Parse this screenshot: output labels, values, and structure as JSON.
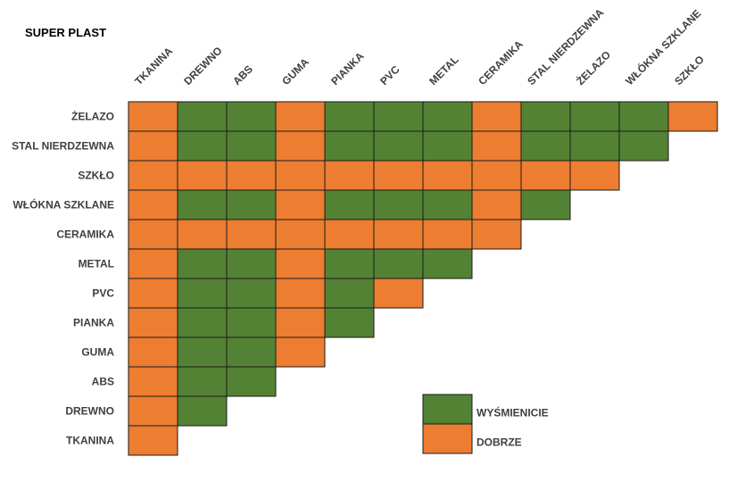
{
  "chart_data": {
    "type": "heatmap",
    "title": "SUPER PLAST",
    "columns": [
      "TKANINA",
      "DREWNO",
      "ABS",
      "GUMA",
      "PIANKA",
      "PVC",
      "METAL",
      "CERAMIKA",
      "STAL NIERDZEWNA",
      "ŻELAZO",
      "WŁÓKNA SZKLANE",
      "SZKŁO"
    ],
    "rows": [
      "ŻELAZO",
      "STAL NIERDZEWNA",
      "SZKŁO",
      "WŁÓKNA SZKLANE",
      "CERAMIKA",
      "METAL",
      "PVC",
      "PIANKA",
      "GUMA",
      "ABS",
      "DREWNO",
      "TKANINA"
    ],
    "values": [
      [
        "D",
        "W",
        "W",
        "D",
        "W",
        "W",
        "W",
        "D",
        "W",
        "W",
        "W",
        "D"
      ],
      [
        "D",
        "W",
        "W",
        "D",
        "W",
        "W",
        "W",
        "D",
        "W",
        "W",
        "W"
      ],
      [
        "D",
        "D",
        "D",
        "D",
        "D",
        "D",
        "D",
        "D",
        "D",
        "D"
      ],
      [
        "D",
        "W",
        "W",
        "D",
        "W",
        "W",
        "W",
        "D",
        "W"
      ],
      [
        "D",
        "D",
        "D",
        "D",
        "D",
        "D",
        "D",
        "D"
      ],
      [
        "D",
        "W",
        "W",
        "D",
        "W",
        "W",
        "W"
      ],
      [
        "D",
        "W",
        "W",
        "D",
        "W",
        "D"
      ],
      [
        "D",
        "W",
        "W",
        "D",
        "W"
      ],
      [
        "D",
        "W",
        "W",
        "D"
      ],
      [
        "D",
        "W",
        "W"
      ],
      [
        "D",
        "W"
      ],
      [
        "D"
      ]
    ],
    "categories": {
      "W": "WYŚMIENICIE",
      "D": "DOBRZE"
    },
    "colors": {
      "W": "#548235",
      "D": "#ED7D31"
    },
    "legend": {
      "placement": "bottom-right",
      "items": [
        {
          "key": "W",
          "label": "WYŚMIENICIE"
        },
        {
          "key": "D",
          "label": "DOBRZE"
        }
      ]
    }
  }
}
